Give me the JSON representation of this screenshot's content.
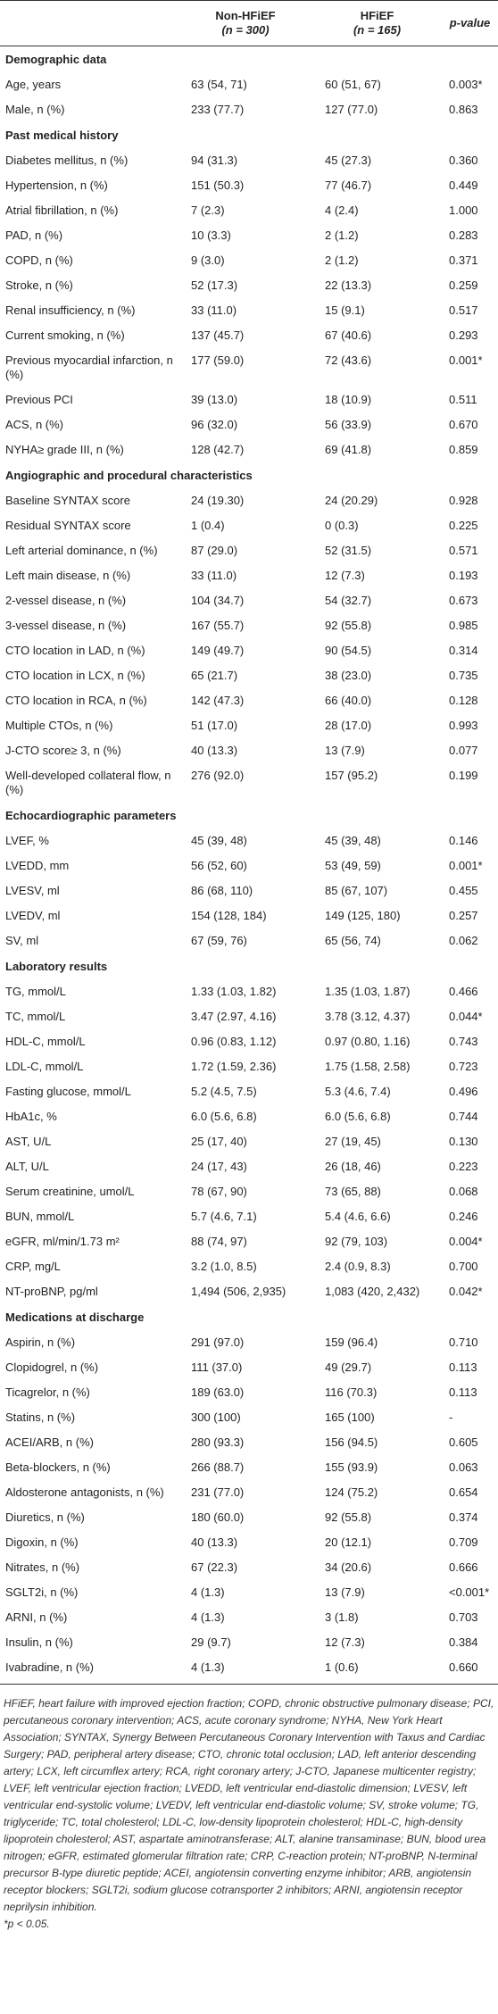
{
  "table": {
    "header": [
      {
        "name": "Non-HFiEF",
        "n": "(n = 300)"
      },
      {
        "name": "HFiEF",
        "n": "(n = 165)"
      },
      {
        "name": "p-value"
      }
    ],
    "sections": [
      {
        "title": "Demographic data",
        "rows": [
          [
            "Age, years",
            "63 (54, 71)",
            "60 (51, 67)",
            "0.003*"
          ],
          [
            "Male, n (%)",
            "233 (77.7)",
            "127 (77.0)",
            "0.863"
          ]
        ]
      },
      {
        "title": "Past medical history",
        "rows": [
          [
            "Diabetes mellitus, n (%)",
            "94 (31.3)",
            "45 (27.3)",
            "0.360"
          ],
          [
            "Hypertension, n (%)",
            "151 (50.3)",
            "77 (46.7)",
            "0.449"
          ],
          [
            "Atrial fibrillation, n (%)",
            "7 (2.3)",
            "4 (2.4)",
            "1.000"
          ],
          [
            "PAD, n (%)",
            "10 (3.3)",
            "2 (1.2)",
            "0.283"
          ],
          [
            "COPD, n (%)",
            "9 (3.0)",
            "2 (1.2)",
            "0.371"
          ],
          [
            "Stroke, n (%)",
            "52 (17.3)",
            "22 (13.3)",
            "0.259"
          ],
          [
            "Renal insufficiency, n (%)",
            "33 (11.0)",
            "15 (9.1)",
            "0.517"
          ],
          [
            "Current smoking, n (%)",
            "137 (45.7)",
            "67 (40.6)",
            "0.293"
          ],
          [
            "Previous myocardial infarction, n (%)",
            "177 (59.0)",
            "72 (43.6)",
            "0.001*"
          ],
          [
            "Previous PCI",
            "39 (13.0)",
            "18 (10.9)",
            "0.511"
          ],
          [
            "ACS, n (%)",
            "96 (32.0)",
            "56 (33.9)",
            "0.670"
          ],
          [
            "NYHA≥ grade III, n (%)",
            "128 (42.7)",
            "69 (41.8)",
            "0.859"
          ]
        ]
      },
      {
        "title": "Angiographic and procedural characteristics",
        "rows": [
          [
            "Baseline SYNTAX score",
            "24 (19.30)",
            "24 (20.29)",
            "0.928"
          ],
          [
            "Residual SYNTAX score",
            "1 (0.4)",
            "0 (0.3)",
            "0.225"
          ],
          [
            "Left arterial dominance, n (%)",
            "87 (29.0)",
            "52 (31.5)",
            "0.571"
          ],
          [
            "Left main disease, n (%)",
            "33 (11.0)",
            "12 (7.3)",
            "0.193"
          ],
          [
            "2-vessel disease, n (%)",
            "104 (34.7)",
            "54 (32.7)",
            "0.673"
          ],
          [
            "3-vessel disease, n (%)",
            "167 (55.7)",
            "92 (55.8)",
            "0.985"
          ],
          [
            "CTO location in LAD, n (%)",
            "149 (49.7)",
            "90 (54.5)",
            "0.314"
          ],
          [
            "CTO location in LCX, n (%)",
            "65 (21.7)",
            "38 (23.0)",
            "0.735"
          ],
          [
            "CTO location in RCA, n (%)",
            "142 (47.3)",
            "66 (40.0)",
            "0.128"
          ],
          [
            "Multiple CTOs, n (%)",
            "51 (17.0)",
            "28 (17.0)",
            "0.993"
          ],
          [
            "J-CTO score≥ 3, n (%)",
            "40 (13.3)",
            "13 (7.9)",
            "0.077"
          ],
          [
            "Well-developed collateral flow, n (%)",
            "276 (92.0)",
            "157 (95.2)",
            "0.199"
          ]
        ]
      },
      {
        "title": "Echocardiographic parameters",
        "rows": [
          [
            "LVEF, %",
            "45 (39, 48)",
            "45 (39, 48)",
            "0.146"
          ],
          [
            "LVEDD, mm",
            "56 (52, 60)",
            "53 (49, 59)",
            "0.001*"
          ],
          [
            "LVESV, ml",
            "86 (68, 110)",
            "85 (67, 107)",
            "0.455"
          ],
          [
            "LVEDV, ml",
            "154 (128, 184)",
            "149 (125, 180)",
            "0.257"
          ],
          [
            "SV, ml",
            "67 (59, 76)",
            "65 (56, 74)",
            "0.062"
          ]
        ]
      },
      {
        "title": "Laboratory results",
        "rows": [
          [
            "TG, mmol/L",
            "1.33 (1.03, 1.82)",
            "1.35 (1.03, 1.87)",
            "0.466"
          ],
          [
            "TC, mmol/L",
            "3.47 (2.97, 4.16)",
            "3.78 (3.12, 4.37)",
            "0.044*"
          ],
          [
            "HDL-C, mmol/L",
            "0.96 (0.83, 1.12)",
            "0.97 (0.80, 1.16)",
            "0.743"
          ],
          [
            "LDL-C, mmol/L",
            "1.72 (1.59, 2.36)",
            "1.75 (1.58, 2.58)",
            "0.723"
          ],
          [
            "Fasting glucose, mmol/L",
            "5.2 (4.5, 7.5)",
            "5.3 (4.6, 7.4)",
            "0.496"
          ],
          [
            "HbA1c, %",
            "6.0 (5.6, 6.8)",
            "6.0 (5.6, 6.8)",
            "0.744"
          ],
          [
            "AST, U/L",
            "25 (17, 40)",
            "27 (19, 45)",
            "0.130"
          ],
          [
            "ALT, U/L",
            "24 (17, 43)",
            "26 (18, 46)",
            "0.223"
          ],
          [
            "Serum creatinine, umol/L",
            "78 (67, 90)",
            "73 (65, 88)",
            "0.068"
          ],
          [
            "BUN, mmol/L",
            "5.7 (4.6, 7.1)",
            "5.4 (4.6, 6.6)",
            "0.246"
          ],
          [
            "eGFR, ml/min/1.73 m²",
            "88 (74, 97)",
            "92 (79, 103)",
            "0.004*"
          ],
          [
            "CRP, mg/L",
            "3.2 (1.0, 8.5)",
            "2.4 (0.9, 8.3)",
            "0.700"
          ],
          [
            "NT-proBNP, pg/ml",
            "1,494 (506, 2,935)",
            "1,083 (420, 2,432)",
            "0.042*"
          ]
        ]
      },
      {
        "title": "Medications at discharge",
        "rows": [
          [
            "Aspirin, n (%)",
            "291 (97.0)",
            "159 (96.4)",
            "0.710"
          ],
          [
            "Clopidogrel, n (%)",
            "111 (37.0)",
            "49 (29.7)",
            "0.113"
          ],
          [
            "Ticagrelor, n (%)",
            "189 (63.0)",
            "116 (70.3)",
            "0.113"
          ],
          [
            "Statins, n (%)",
            "300 (100)",
            "165 (100)",
            "-"
          ],
          [
            "ACEI/ARB, n (%)",
            "280 (93.3)",
            "156 (94.5)",
            "0.605"
          ],
          [
            "Beta-blockers, n (%)",
            "266 (88.7)",
            "155 (93.9)",
            "0.063"
          ],
          [
            "Aldosterone antagonists, n (%)",
            "231 (77.0)",
            "124 (75.2)",
            "0.654"
          ],
          [
            "Diuretics, n (%)",
            "180 (60.0)",
            "92 (55.8)",
            "0.374"
          ],
          [
            "Digoxin, n (%)",
            "40 (13.3)",
            "20 (12.1)",
            "0.709"
          ],
          [
            "Nitrates, n (%)",
            "67 (22.3)",
            "34 (20.6)",
            "0.666"
          ],
          [
            "SGLT2i, n (%)",
            "4 (1.3)",
            "13 (7.9)",
            "<0.001*"
          ],
          [
            "ARNI, n (%)",
            "4 (1.3)",
            "3 (1.8)",
            "0.703"
          ],
          [
            "Insulin, n (%)",
            "29 (9.7)",
            "12 (7.3)",
            "0.384"
          ],
          [
            "Ivabradine, n (%)",
            "4 (1.3)",
            "1 (0.6)",
            "0.660"
          ]
        ]
      }
    ]
  },
  "footnote": {
    "text": "HFiEF, heart failure with improved ejection fraction; COPD, chronic obstructive pulmonary disease; PCI, percutaneous coronary intervention; ACS, acute coronary syndrome; NYHA, New York Heart Association; SYNTAX, Synergy Between Percutaneous Coronary Intervention with Taxus and Cardiac Surgery; PAD, peripheral artery disease; CTO, chronic total occlusion; LAD, left anterior descending artery; LCX, left circumflex artery; RCA, right coronary artery; J-CTO, Japanese multicenter registry; LVEF, left ventricular ejection fraction; LVEDD, left ventricular end-diastolic dimension; LVESV, left ventricular end-systolic volume; LVEDV, left ventricular end-diastolic volume; SV, stroke volume; TG, triglyceride; TC, total cholesterol; LDL-C, low-density lipoprotein cholesterol; HDL-C, high-density lipoprotein cholesterol; AST, aspartate aminotransferase; ALT, alanine transaminase; BUN, blood urea nitrogen; eGFR, estimated glomerular filtration rate; CRP, C-reaction protein; NT-proBNP, N-terminal precursor B-type diuretic peptide; ACEI, angiotensin converting enzyme inhibitor; ARB, angiotensin receptor blockers; SGLT2i, sodium glucose cotransporter 2 inhibitors; ARNI, angiotensin receptor neprilysin inhibition.",
    "note": "*p < 0.05."
  }
}
